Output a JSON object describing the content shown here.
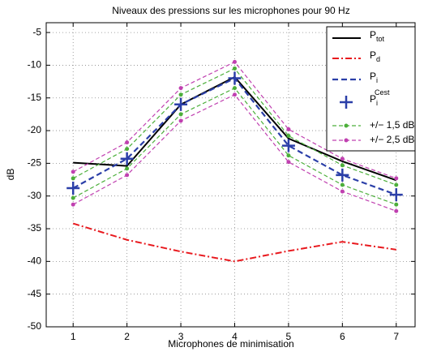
{
  "chart_data": {
    "type": "line",
    "title": "Niveaux des pressions sur les microphones pour 90 Hz",
    "xlabel": "Microphones de minimisation",
    "ylabel": "dB",
    "x": [
      1,
      2,
      3,
      4,
      5,
      6,
      7
    ],
    "xlim": [
      0.5,
      7.35
    ],
    "xticks": [
      1,
      2,
      3,
      4,
      5,
      6,
      7
    ],
    "ylim": [
      -50,
      -3.5
    ],
    "yticks": [
      -50,
      -45,
      -40,
      -35,
      -30,
      -25,
      -20,
      -15,
      -10,
      -5
    ],
    "grid": true,
    "legend": "upper-right",
    "series": [
      {
        "name": "P",
        "name_sub": "tot",
        "color": "#000000",
        "style": "solid",
        "marker": "none",
        "values": [
          -24.9,
          -25.4,
          -16,
          -11.8,
          -21.2,
          -24.7,
          -27.6
        ]
      },
      {
        "name": "P",
        "name_sub": "d",
        "color": "#e8191e",
        "style": "dashdot",
        "marker": "none",
        "values": [
          -34.2,
          -36.7,
          -38.5,
          -40,
          -38.4,
          -37,
          -38.2
        ]
      },
      {
        "name": "P",
        "name_sub": "i",
        "color": "#2b3fa8",
        "style": "dashed",
        "marker": "none",
        "values": [
          -28.8,
          -24.3,
          -16,
          -12,
          -22.3,
          -26.8,
          -29.8
        ]
      },
      {
        "name": "P",
        "name_sub": "i",
        "name_sup": "Cest",
        "color": "#2b3fa8",
        "style": "none",
        "marker": "plus",
        "values": [
          -28.8,
          -24.3,
          -16,
          -12,
          -22.3,
          -26.8,
          -29.8
        ]
      },
      {
        "name": "+/− 1,5 dB",
        "color": "#4caf3a",
        "style": "dashed",
        "marker": "dot",
        "values": [
          -27.3,
          -22.8,
          -14.5,
          -10.5,
          -20.8,
          -25.3,
          -28.3
        ],
        "lower": [
          -30.3,
          -25.8,
          -17.5,
          -13.5,
          -23.8,
          -28.3,
          -31.3
        ]
      },
      {
        "name": "+/− 2,5 dB",
        "color": "#c040b0",
        "style": "dashed",
        "marker": "dot",
        "values": [
          -26.3,
          -21.8,
          -13.5,
          -9.5,
          -19.8,
          -24.3,
          -27.3
        ],
        "lower": [
          -31.3,
          -26.8,
          -18.5,
          -14.5,
          -24.8,
          -29.3,
          -32.3
        ]
      }
    ]
  }
}
